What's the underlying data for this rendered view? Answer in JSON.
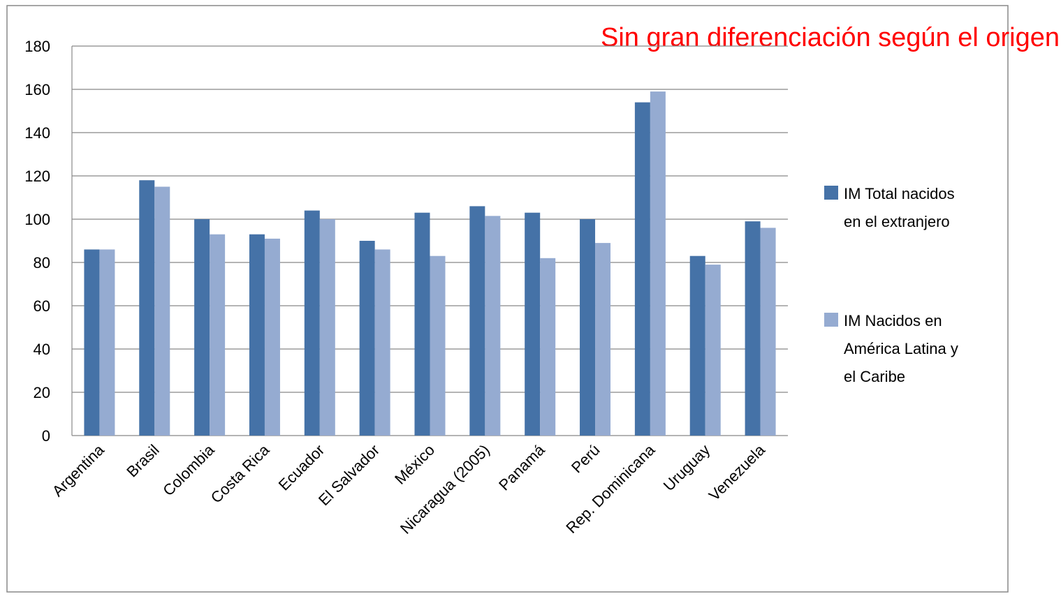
{
  "chart_data": {
    "type": "bar",
    "annotation": "Sin gran diferenciación según el origen",
    "categories": [
      "Argentina",
      "Brasil",
      "Colombia",
      "Costa Rica",
      "Ecuador",
      "El Salvador",
      "México",
      "Nicaragua (2005)",
      "Panamá",
      "Perú",
      "Rep. Dominicana",
      "Uruguay",
      "Venezuela"
    ],
    "series": [
      {
        "name": "IM Total nacidos en el extranjero",
        "color": "#4572a7",
        "values": [
          86,
          118,
          100,
          93,
          104,
          90,
          103,
          106,
          103,
          100,
          154,
          83,
          99
        ]
      },
      {
        "name": "IM Nacidos en América Latina y el Caribe",
        "color": "#95abd1",
        "values": [
          86,
          115,
          93,
          91,
          100,
          86,
          83,
          101.5,
          82,
          89,
          159,
          79,
          96
        ]
      }
    ],
    "ylim": [
      0,
      180
    ],
    "yticks": [
      0,
      20,
      40,
      60,
      80,
      100,
      120,
      140,
      160,
      180
    ],
    "grid": true,
    "legend": "right"
  }
}
